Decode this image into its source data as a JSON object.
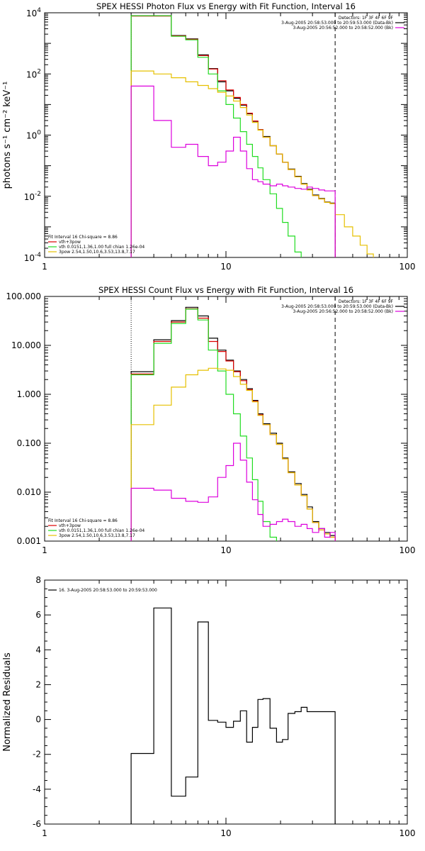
{
  "chart_data": [
    {
      "type": "line",
      "title": "SPEX HESSI Photon Flux vs Energy with Fit Function, Interval 16",
      "xlabel": "",
      "ylabel": "photons s⁻¹ cm⁻² keV⁻¹",
      "xscale": "log",
      "yscale": "log",
      "xlim": [
        1,
        100
      ],
      "ylim": [
        0.0001,
        10000
      ],
      "x_ticks": [
        {
          "v": 1,
          "label": "1"
        },
        {
          "v": 10,
          "label": "10"
        },
        {
          "v": 100,
          "label": "100"
        }
      ],
      "y_ticks": [
        {
          "v": 0.0001,
          "base": "10",
          "exp": "-4"
        },
        {
          "v": 0.01,
          "base": "10",
          "exp": "-2"
        },
        {
          "v": 1,
          "base": "10",
          "exp": "0"
        },
        {
          "v": 100,
          "base": "10",
          "exp": "2"
        },
        {
          "v": 10000,
          "base": "10",
          "exp": "4"
        }
      ],
      "vlines": [
        {
          "x": 3,
          "style": "dotted"
        },
        {
          "x": 40,
          "style": "dashed"
        }
      ],
      "legend_right": {
        "position": "top-right",
        "lines": [
          {
            "text": "Detectors: 1F 3F 4F 6F 9F",
            "color": ""
          },
          {
            "text": "3-Aug-2005 20:58:53.000 to 20:59:53.000 (Data-Bk)",
            "color": "#000000"
          },
          {
            "text": "3-Aug-2005 20:56:52.000 to 20:58:52.000 (Bk)",
            "color": "#dd00dd"
          }
        ]
      },
      "legend_left": {
        "position": "bottom-left",
        "lines": [
          {
            "text": "Fit Interval 16   Chi-square = 8.86",
            "color": ""
          },
          {
            "text": "vth+3pow",
            "color": "#dd0000"
          },
          {
            "text": "vth 0.0151,1.36,1.00  full chian 1.26e-04",
            "color": "#22dd22"
          },
          {
            "text": "3pow 2.54,1.50,10.6,3.53,13.8,7.17",
            "color": "#e6c000"
          }
        ]
      },
      "edges": [
        3,
        4,
        5,
        6,
        7,
        8,
        9,
        10,
        11,
        12,
        13,
        14,
        15,
        16,
        17.5,
        19,
        20.5,
        22,
        24,
        26,
        28,
        30,
        32.5,
        35,
        37.5,
        40,
        45,
        50,
        55,
        60,
        65,
        70
      ],
      "series": [
        {
          "name": "",
          "color": "#000000",
          "values": [
            8000,
            8000,
            1800,
            1400,
            420,
            150,
            55,
            28,
            16,
            9.5,
            5,
            2.8,
            1.5,
            0.9,
            0.45,
            0.24,
            0.13,
            0.078,
            0.045,
            0.026,
            0.017,
            0.011,
            0.0085,
            0.0065,
            0.006
          ]
        },
        {
          "name": "vth+3pow",
          "color": "#dd0000",
          "values": [
            7800,
            7800,
            1750,
            1350,
            400,
            145,
            60,
            30,
            17,
            10,
            5.2,
            2.9,
            1.5,
            0.85,
            0.45,
            0.24,
            0.13,
            0.075,
            0.043,
            0.025,
            0.016,
            0.0105,
            0.0082,
            0.0063,
            0.0058
          ]
        },
        {
          "name": "vth",
          "color": "#22dd22",
          "values": [
            8000,
            8000,
            1700,
            1300,
            350,
            100,
            28,
            10,
            3.6,
            1.3,
            0.5,
            0.2,
            0.085,
            0.035,
            0.012,
            0.004,
            0.0014,
            0.0005,
            0.00015
          ]
        },
        {
          "name": "3pow",
          "color": "#e6c000",
          "values": [
            125,
            100,
            75,
            55,
            42,
            33,
            25,
            19,
            13,
            8,
            4.5,
            2.6,
            1.45,
            0.85,
            0.45,
            0.24,
            0.13,
            0.075,
            0.043,
            0.025,
            0.016,
            0.0105,
            0.0082,
            0.0063,
            0.0058,
            0.0025,
            0.001,
            0.0005,
            0.00025,
            0.00013,
            8e-05
          ]
        },
        {
          "name": "Bk",
          "color": "#dd00dd",
          "values": [
            40,
            3,
            0.4,
            0.5,
            0.2,
            0.1,
            0.13,
            0.3,
            0.85,
            0.3,
            0.08,
            0.035,
            0.03,
            0.025,
            0.022,
            0.025,
            0.022,
            0.02,
            0.018,
            0.017,
            0.02,
            0.018,
            0.016,
            0.015,
            0.015
          ]
        }
      ]
    },
    {
      "type": "line",
      "title": "SPEX HESSI Count Flux vs Energy with Fit Function, Interval 16",
      "xlabel": "",
      "ylabel": "",
      "xscale": "log",
      "yscale": "log",
      "xlim": [
        1,
        100
      ],
      "ylim": [
        0.001,
        100
      ],
      "x_ticks": [
        {
          "v": 1,
          "label": "1"
        },
        {
          "v": 10,
          "label": "10"
        },
        {
          "v": 100,
          "label": "100"
        }
      ],
      "y_ticks": [
        {
          "v": 0.001,
          "label": "0.001"
        },
        {
          "v": 0.01,
          "label": "0.010"
        },
        {
          "v": 0.1,
          "label": "0.100"
        },
        {
          "v": 1,
          "label": "1.000"
        },
        {
          "v": 10,
          "label": "10.000"
        },
        {
          "v": 100,
          "label": "100.000"
        }
      ],
      "vlines": [
        {
          "x": 3,
          "style": "dotted"
        },
        {
          "x": 40,
          "style": "dashed"
        }
      ],
      "legend_right": {
        "position": "top-right",
        "lines": [
          {
            "text": "Detectors: 1F 3F 4F 6F 9F",
            "color": ""
          },
          {
            "text": "3-Aug-2005 20:58:53.000 to 20:59:53.000 (Data-Bk)",
            "color": "#000000"
          },
          {
            "text": "3-Aug-2005 20:56:52.000 to 20:58:52.000 (Bk)",
            "color": "#dd00dd"
          }
        ]
      },
      "legend_left": {
        "position": "bottom-left",
        "lines": [
          {
            "text": "Fit Interval 16   Chi-square = 8.86",
            "color": ""
          },
          {
            "text": "vth+3pow",
            "color": "#dd0000"
          },
          {
            "text": "vth 0.0151,1.36,1.00  full chian 1.26e-04",
            "color": "#22dd22"
          },
          {
            "text": "3pow 2.54,1.50,10.6,3.53,13.8,7.17",
            "color": "#e6c000"
          }
        ]
      },
      "edges": [
        3,
        4,
        5,
        6,
        7,
        8,
        9,
        10,
        11,
        12,
        13,
        14,
        15,
        16,
        17.5,
        19,
        20.5,
        22,
        24,
        26,
        28,
        30,
        32.5,
        35,
        37.5,
        40
      ],
      "series": [
        {
          "name": "",
          "color": "#000000",
          "values": [
            2.9,
            13,
            32,
            60,
            40,
            14,
            8,
            5,
            3,
            2,
            1.3,
            0.75,
            0.4,
            0.25,
            0.16,
            0.1,
            0.05,
            0.026,
            0.015,
            0.009,
            0.005,
            0.0025,
            0.0018,
            0.0015,
            0.0013
          ]
        },
        {
          "name": "vth+3pow",
          "color": "#dd0000",
          "values": [
            2.6,
            12,
            30,
            56,
            36,
            12,
            7.5,
            4.8,
            2.9,
            1.9,
            1.25,
            0.72,
            0.38,
            0.24,
            0.15,
            0.095,
            0.048,
            0.025,
            0.014,
            0.0085,
            0.0045,
            0.0024,
            0.0017,
            0.0014,
            0.0012
          ]
        },
        {
          "name": "vth",
          "color": "#22dd22",
          "values": [
            2.5,
            11,
            28,
            55,
            33,
            8,
            3,
            1,
            0.4,
            0.14,
            0.05,
            0.018,
            0.0065,
            0.0025,
            0.0012,
            0.0009
          ]
        },
        {
          "name": "3pow",
          "color": "#e6c000",
          "values": [
            0.24,
            0.6,
            1.4,
            2.5,
            3.1,
            3.4,
            3.3,
            3.1,
            2.3,
            1.6,
            1.2,
            0.7,
            0.37,
            0.24,
            0.15,
            0.095,
            0.048,
            0.025,
            0.014,
            0.0085,
            0.0045,
            0.0024,
            0.0017,
            0.0014,
            0.0012
          ]
        },
        {
          "name": "Bk",
          "color": "#dd00dd",
          "values": [
            0.012,
            0.011,
            0.0075,
            0.0065,
            0.0062,
            0.008,
            0.02,
            0.035,
            0.1,
            0.045,
            0.016,
            0.007,
            0.0035,
            0.002,
            0.0022,
            0.0025,
            0.0028,
            0.0025,
            0.002,
            0.0022,
            0.0018,
            0.0015,
            0.0018,
            0.0012,
            0.0015
          ]
        }
      ]
    },
    {
      "type": "line",
      "title": "",
      "xlabel": "",
      "ylabel": "Normalized Residuals",
      "xscale": "log",
      "yscale": "linear",
      "xlim": [
        1,
        100
      ],
      "ylim": [
        -6,
        8
      ],
      "x_ticks": [
        {
          "v": 1,
          "label": "1"
        },
        {
          "v": 10,
          "label": "10"
        },
        {
          "v": 100,
          "label": "100"
        }
      ],
      "y_ticks": [
        {
          "v": -6,
          "label": "-6"
        },
        {
          "v": -4,
          "label": "-4"
        },
        {
          "v": -2,
          "label": "-2"
        },
        {
          "v": 0,
          "label": "0"
        },
        {
          "v": 2,
          "label": "2"
        },
        {
          "v": 4,
          "label": "4"
        },
        {
          "v": 6,
          "label": "6"
        },
        {
          "v": 8,
          "label": "8"
        }
      ],
      "vlines": [],
      "legend_left": {
        "position": "top-left",
        "lines": [
          {
            "text": "16.  3-Aug-2005 20:58:53.000 to 20:59:53.000",
            "color": "#000000"
          }
        ]
      },
      "edges": [
        3,
        4,
        5,
        6,
        7,
        8,
        9,
        10,
        11,
        12,
        13,
        14,
        15,
        16,
        17.5,
        19,
        20.5,
        22,
        24,
        26,
        28,
        30,
        32.5,
        35,
        37.5,
        40
      ],
      "series": [
        {
          "name": "16.  3-Aug-2005 20:58:53.000 to 20:59:53.000",
          "color": "#000000",
          "values": [
            -1.95,
            6.4,
            -4.4,
            -3.3,
            5.6,
            -0.05,
            -0.15,
            -0.45,
            -0.1,
            0.5,
            -1.3,
            -0.45,
            1.15,
            1.2,
            -0.5,
            -1.3,
            -1.15,
            0.35,
            0.45,
            0.7,
            0.45,
            0.45,
            0.45,
            0.45,
            0.45
          ]
        }
      ]
    }
  ]
}
